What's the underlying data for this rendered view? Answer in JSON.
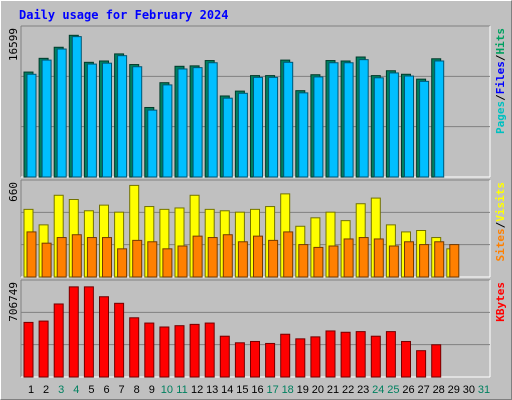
{
  "chart_data": {
    "type": "bar",
    "title": "Daily usage for February 2024",
    "x_labels": [
      "1",
      "2",
      "3",
      "4",
      "5",
      "6",
      "7",
      "8",
      "9",
      "10",
      "11",
      "12",
      "13",
      "14",
      "15",
      "16",
      "17",
      "18",
      "19",
      "20",
      "21",
      "22",
      "23",
      "24",
      "25",
      "26",
      "27",
      "28",
      "29",
      "30",
      "31"
    ],
    "weekend_days": [
      "3",
      "4",
      "10",
      "11",
      "17",
      "18",
      "24",
      "25",
      "31"
    ],
    "panels": [
      {
        "id": "hits_files",
        "ymax_label": "16599",
        "ymax": 16599,
        "right_labels": [
          {
            "text": "Pages",
            "color": "#00c0c0"
          },
          {
            "text": "/",
            "color": "#000000"
          },
          {
            "text": "Files",
            "color": "#0000ff"
          },
          {
            "text": "/",
            "color": "#000000"
          },
          {
            "text": "Hits",
            "color": "#00a060"
          }
        ],
        "series": [
          {
            "name": "Hits",
            "color": "#008060",
            "values": [
              11850,
              13400,
              14650,
              16000,
              12950,
              13100,
              13900,
              12700,
              7850,
              10650,
              12500,
              12550,
              13150,
              9150,
              9700,
              11450,
              11450,
              13200,
              9750,
              11550,
              13150,
              13100,
              13550,
              11450,
              12000,
              11600,
              11050,
              13350,
              0
            ]
          },
          {
            "name": "Files",
            "color": "#00bfff",
            "values": [
              11600,
              13200,
              14450,
              15850,
              12750,
              12850,
              13700,
              12450,
              7550,
              10400,
              12200,
              12350,
              12900,
              8900,
              9450,
              11250,
              11250,
              12950,
              9500,
              11300,
              12900,
              12900,
              13250,
              11200,
              11750,
              11400,
              10800,
              13100,
              0
            ]
          },
          {
            "name": "Pages",
            "color": "#00c0c0",
            "values": []
          }
        ]
      },
      {
        "id": "visits_sites",
        "ymax_label": "660",
        "ymax": 660,
        "right_labels": [
          {
            "text": "Sites",
            "color": "#ff8000"
          },
          {
            "text": "/",
            "color": "#000000"
          },
          {
            "text": "Visits",
            "color": "#ffff00"
          }
        ],
        "series": [
          {
            "name": "Visits",
            "color": "#ffff00",
            "values": [
              480,
              370,
              580,
              550,
              470,
              510,
              460,
              650,
              500,
              480,
              490,
              580,
              480,
              470,
              460,
              480,
              500,
              590,
              360,
              420,
              460,
              400,
              520,
              560,
              370,
              320,
              330,
              280,
              200
            ]
          },
          {
            "name": "Sites",
            "color": "#ff8000",
            "values": [
              320,
              240,
              280,
              300,
              280,
              280,
              200,
              260,
              250,
              200,
              220,
              290,
              280,
              300,
              250,
              290,
              260,
              320,
              230,
              210,
              220,
              270,
              280,
              270,
              220,
              250,
              230,
              250,
              230
            ]
          }
        ]
      },
      {
        "id": "kbytes",
        "ymax_label": "706749",
        "ymax": 706749,
        "right_labels": [
          {
            "text": "KBytes",
            "color": "#ff0000"
          }
        ],
        "series": [
          {
            "name": "KBytes",
            "color": "#ff0000",
            "values": [
              415000,
              425000,
              555000,
              685000,
              685000,
              610000,
              560000,
              450000,
              410000,
              380000,
              390000,
              400000,
              410000,
              310000,
              260000,
              270000,
              255000,
              325000,
              290000,
              305000,
              350000,
              340000,
              345000,
              310000,
              345000,
              270000,
              200000,
              245000,
              0
            ]
          }
        ]
      }
    ]
  }
}
